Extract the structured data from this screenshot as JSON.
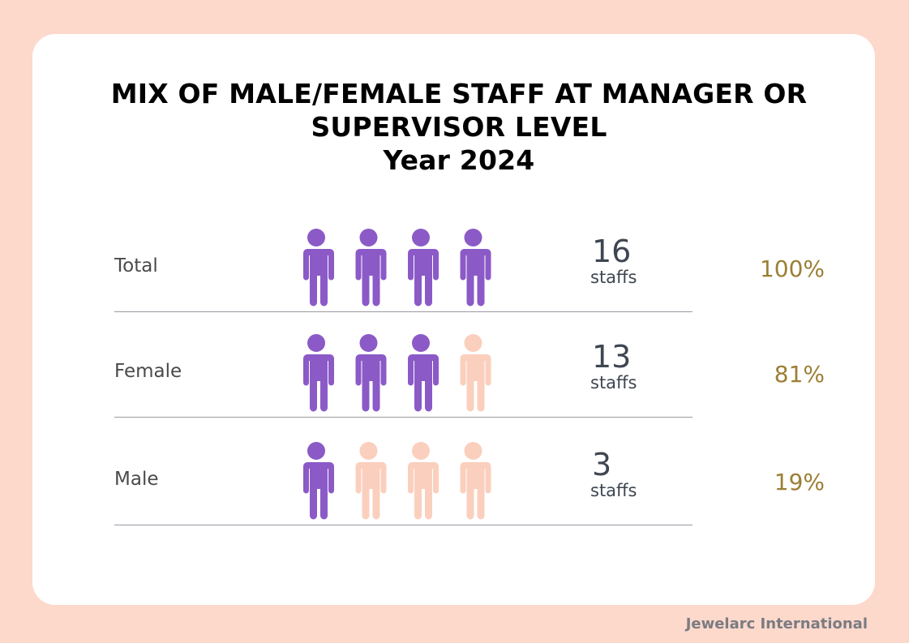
{
  "title_lines": [
    "MIX OF MALE/FEMALE STAFF AT MANAGER OR",
    "SUPERVISOR LEVEL",
    "Year 2024"
  ],
  "footer": "Jewelarc International",
  "colors": {
    "background": "#fcd9cb",
    "filled_icon": "#8b5ac7",
    "empty_icon": "#fbcfbd",
    "percent_text": "#9c7f35",
    "count_text": "#3f4652"
  },
  "chart_data": {
    "type": "pictograph",
    "icon": "person-icon",
    "icons_per_row": 4,
    "rows": [
      {
        "label": "Total",
        "count": "16",
        "unit": "staffs",
        "percent": "100%",
        "filled_icons": 4
      },
      {
        "label": "Female",
        "count": "13",
        "unit": "staffs",
        "percent": "81%",
        "filled_icons": 3
      },
      {
        "label": "Male",
        "count": "3",
        "unit": "staffs",
        "percent": "19%",
        "filled_icons": 1
      }
    ]
  }
}
